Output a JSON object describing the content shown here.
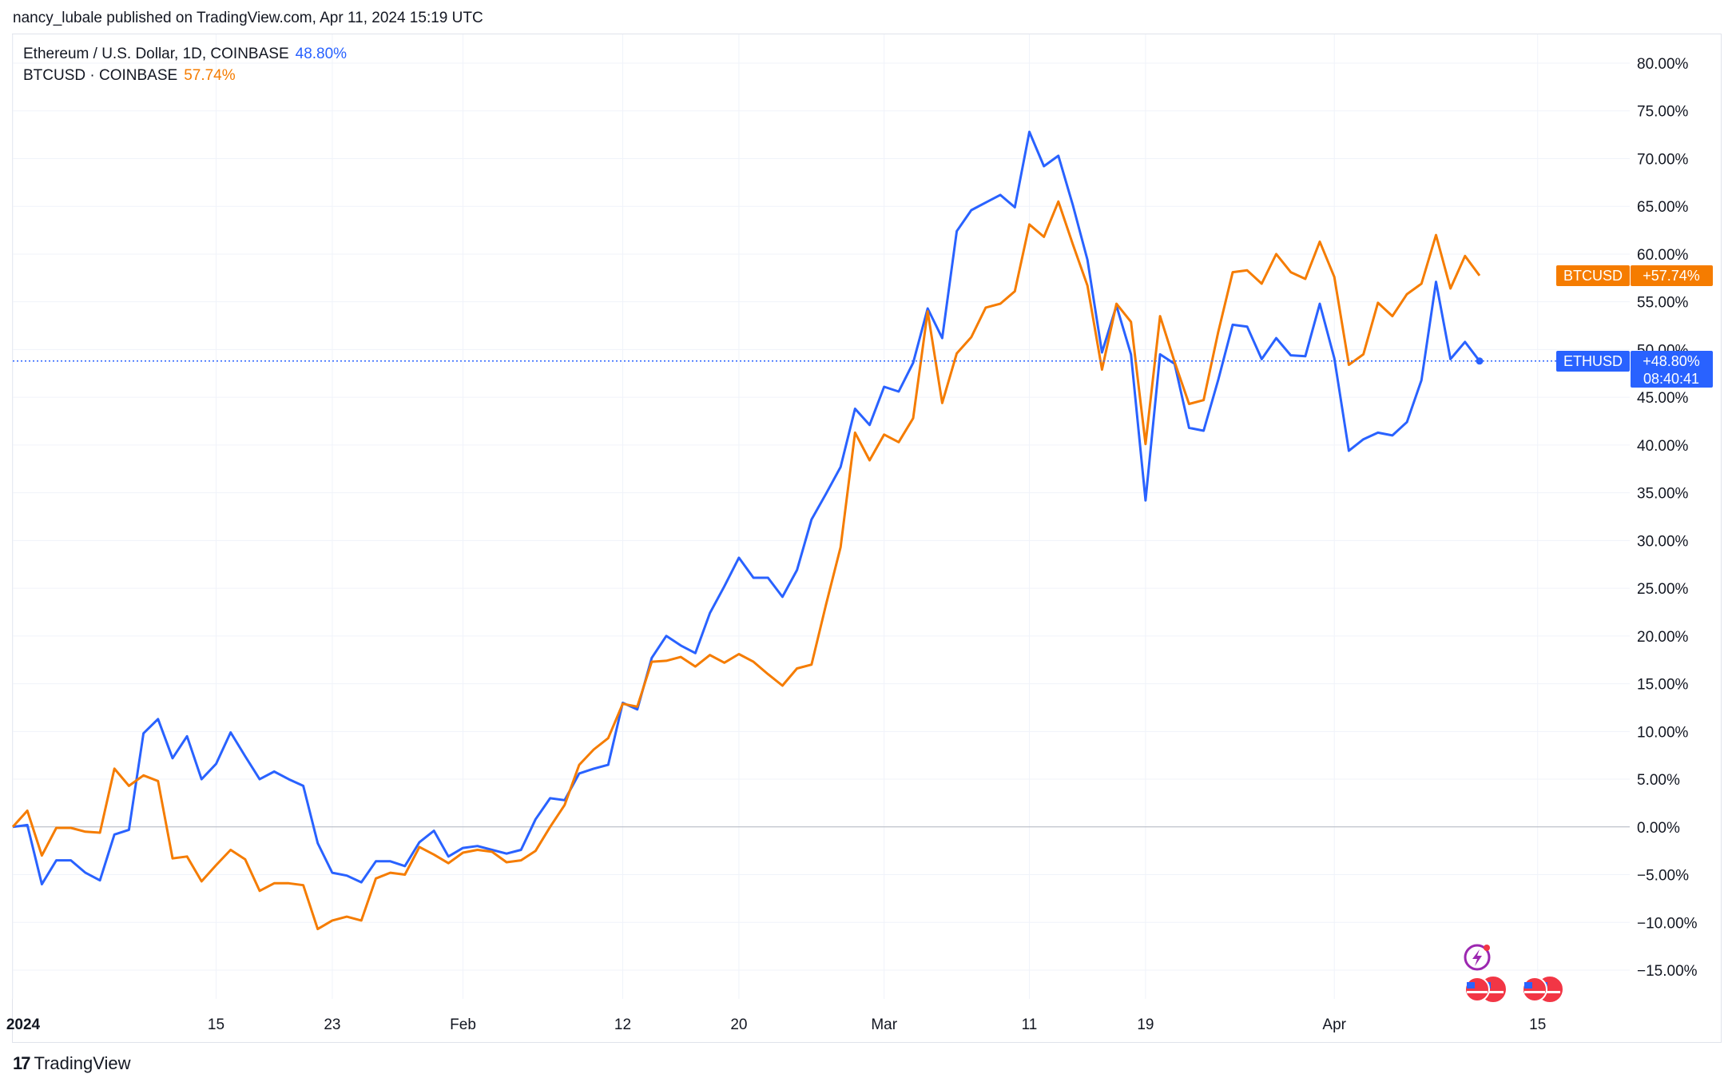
{
  "header": {
    "text": "nancy_lubale published on TradingView.com, Apr 11, 2024 15:19 UTC"
  },
  "legend": [
    {
      "label": "Ethereum / U.S. Dollar, 1D, COINBASE",
      "value": "48.80%",
      "color": "#2962ff"
    },
    {
      "label": "BTCUSD · COINBASE",
      "value": "57.74%",
      "color": "#f57c00"
    }
  ],
  "tags": {
    "btc": {
      "name": "BTCUSD",
      "value": "+57.74%"
    },
    "eth": {
      "name": "ETHUSD",
      "value": "+48.80%",
      "countdown": "08:40:41"
    }
  },
  "footer": {
    "brand": "TradingView",
    "mark": "17"
  },
  "icons": [
    "flash-event-icon",
    "us-flag-icon",
    "us-flag-icon",
    "us-flag-icon",
    "us-flag-icon"
  ],
  "chart_data": {
    "type": "line",
    "ylim": [
      -15,
      80
    ],
    "y_ticks": [
      "80.00%",
      "75.00%",
      "70.00%",
      "65.00%",
      "60.00%",
      "55.00%",
      "50.00%",
      "45.00%",
      "40.00%",
      "35.00%",
      "30.00%",
      "25.00%",
      "20.00%",
      "15.00%",
      "10.00%",
      "5.00%",
      "0.00%",
      "−5.00%",
      "−10.00%",
      "−15.00%"
    ],
    "y_tick_values": [
      80,
      75,
      70,
      65,
      60,
      55,
      50,
      45,
      40,
      35,
      30,
      25,
      20,
      15,
      10,
      5,
      0,
      -5,
      -10,
      -15
    ],
    "x_ticks": [
      {
        "label": "2024",
        "day": 0
      },
      {
        "label": "15",
        "day": 14
      },
      {
        "label": "23",
        "day": 22
      },
      {
        "label": "Feb",
        "day": 31
      },
      {
        "label": "12",
        "day": 42
      },
      {
        "label": "20",
        "day": 50
      },
      {
        "label": "Mar",
        "day": 60
      },
      {
        "label": "11",
        "day": 70
      },
      {
        "label": "19",
        "day": 78
      },
      {
        "label": "Apr",
        "day": 91
      },
      {
        "label": "15",
        "day": 105
      }
    ],
    "x_range_days": [
      0,
      111
    ],
    "series": [
      {
        "name": "ETHUSD",
        "color": "#2962ff",
        "values": [
          0,
          0.2,
          -6,
          -3.5,
          -3.5,
          -4.8,
          -5.6,
          -0.8,
          -0.3,
          9.8,
          11.3,
          7.2,
          9.5,
          5,
          6.6,
          9.9,
          7.4,
          5,
          5.8,
          5,
          4.3,
          -1.7,
          -4.8,
          -5.1,
          -5.8,
          -3.6,
          -3.6,
          -4.1,
          -1.6,
          -0.4,
          -3.1,
          -2.2,
          -2,
          -2.4,
          -2.8,
          -2.4,
          0.8,
          3,
          2.8,
          5.6,
          6.1,
          6.5,
          13,
          12.3,
          17.7,
          20,
          19,
          18.2,
          22.4,
          25.2,
          28.2,
          26.1,
          26.1,
          24.1,
          26.9,
          32.2,
          34.9,
          37.7,
          43.8,
          42.1,
          46.1,
          45.6,
          48.6,
          54.3,
          51.2,
          62.4,
          64.6,
          65.4,
          66.2,
          64.9,
          72.8,
          69.2,
          70.3,
          65.1,
          59.4,
          49.7,
          54.6,
          49.5,
          34.2,
          49.5,
          48.5,
          41.8,
          41.5,
          46.8,
          52.6,
          52.4,
          49,
          51.2,
          49.4,
          49.3,
          54.8,
          49.1,
          39.4,
          40.6,
          41.3,
          41,
          42.4,
          46.8,
          57.1,
          49,
          50.8,
          48.8
        ]
      },
      {
        "name": "BTCUSD",
        "color": "#f57c00",
        "values": [
          0,
          1.7,
          -3,
          -0.1,
          -0.1,
          -0.5,
          -0.6,
          6.1,
          4.3,
          5.4,
          4.8,
          -3.3,
          -3.1,
          -5.7,
          -4,
          -2.4,
          -3.4,
          -6.7,
          -5.9,
          -5.9,
          -6.1,
          -10.7,
          -9.8,
          -9.4,
          -9.8,
          -5.4,
          -4.8,
          -5,
          -2.1,
          -2.9,
          -3.8,
          -2.7,
          -2.4,
          -2.6,
          -3.7,
          -3.5,
          -2.5,
          0,
          2.3,
          6.5,
          8.1,
          9.3,
          12.9,
          12.6,
          17.3,
          17.4,
          17.8,
          16.8,
          18,
          17.2,
          18.1,
          17.3,
          16,
          14.8,
          16.6,
          17,
          23.3,
          29.3,
          41.3,
          38.4,
          41.1,
          40.3,
          42.8,
          54,
          44.4,
          49.6,
          51.3,
          54.4,
          54.8,
          56.1,
          63.1,
          61.8,
          65.5,
          61,
          56.7,
          47.9,
          54.8,
          52.9,
          40.1,
          53.5,
          48.7,
          44.3,
          44.7,
          51.8,
          58.1,
          58.3,
          56.9,
          60,
          58.1,
          57.4,
          61.3,
          57.6,
          48.4,
          49.5,
          54.9,
          53.5,
          55.8,
          56.9,
          62,
          56.4,
          59.8,
          57.74
        ]
      }
    ]
  }
}
